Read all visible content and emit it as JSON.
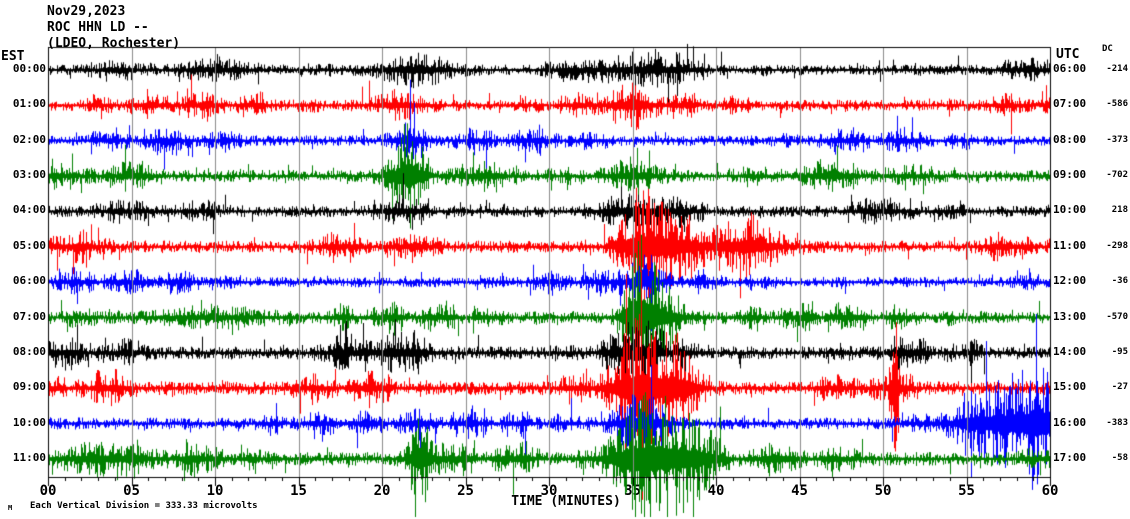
{
  "header": {
    "date": "Nov29,2023",
    "station_line": "ROC HHN LD --",
    "network_line": "(LDEO, Rochester)"
  },
  "left_axis": {
    "label": "EST"
  },
  "right_axis": {
    "label": "UTC"
  },
  "dc_column": {
    "label": "DC"
  },
  "x_axis": {
    "title": "TIME (MINUTES)",
    "labels": [
      "00",
      "05",
      "10",
      "15",
      "20",
      "25",
      "30",
      "35",
      "40",
      "45",
      "50",
      "55",
      "60"
    ]
  },
  "footer": {
    "watermark": "M",
    "scale_note": "Each Vertical Division = 333.33 microvolts"
  },
  "chart_data": {
    "type": "line",
    "subtype": "helicorder-seismogram",
    "title": "ROC HHN LD -- (LDEO, Rochester) Nov29,2023",
    "xlabel": "TIME (MINUTES)",
    "x_range_minutes": [
      0,
      60
    ],
    "minutes_per_row": 60,
    "grid": {
      "vertical_every_minutes": 5,
      "color": "#8a8a8a"
    },
    "axis_color": "#000000",
    "background": "#ffffff",
    "trace_color_cycle": [
      "#000000",
      "#ff0000",
      "#0000ff",
      "#008000"
    ],
    "scale_microvolts_per_division": "333.33",
    "rows": [
      {
        "est": "00:00",
        "utc": "06:00",
        "dc": "-214",
        "color": "#000000",
        "seed": 11,
        "base_amp": 13,
        "bursts": [
          {
            "min": 22,
            "width": 2.0,
            "amp": 10
          },
          {
            "min": 35,
            "width": 2.0,
            "amp": 8
          }
        ]
      },
      {
        "est": "01:00",
        "utc": "07:00",
        "dc": "-586",
        "color": "#ff0000",
        "seed": 22,
        "base_amp": 14,
        "bursts": [
          {
            "min": 21,
            "width": 1.5,
            "amp": 8
          },
          {
            "min": 35,
            "width": 1.5,
            "amp": 8
          }
        ]
      },
      {
        "est": "02:00",
        "utc": "08:00",
        "dc": "-373",
        "color": "#0000ff",
        "seed": 33,
        "base_amp": 13,
        "bursts": [
          {
            "min": 21.5,
            "width": 1.0,
            "amp": 12
          }
        ]
      },
      {
        "est": "03:00",
        "utc": "09:00",
        "dc": "-702",
        "color": "#008000",
        "seed": 44,
        "base_amp": 15,
        "bursts": [
          {
            "min": 21.6,
            "width": 0.9,
            "amp": 32
          },
          {
            "min": 35,
            "width": 1.5,
            "amp": 10
          }
        ]
      },
      {
        "est": "04:00",
        "utc": "10:00",
        "dc": "218",
        "color": "#000000",
        "seed": 55,
        "base_amp": 14,
        "bursts": [
          {
            "min": 35,
            "width": 1.5,
            "amp": 10
          }
        ]
      },
      {
        "est": "05:00",
        "utc": "11:00",
        "dc": "-298",
        "color": "#ff0000",
        "seed": 66,
        "base_amp": 15,
        "bursts": [
          {
            "min": 35.4,
            "width": 1.2,
            "amp": 38
          },
          {
            "min": 37.5,
            "width": 1.5,
            "amp": 20
          },
          {
            "min": 41.5,
            "width": 2.5,
            "amp": 14
          }
        ]
      },
      {
        "est": "06:00",
        "utc": "12:00",
        "dc": "-36",
        "color": "#0000ff",
        "seed": 77,
        "base_amp": 13,
        "bursts": [
          {
            "min": 35.4,
            "width": 1.0,
            "amp": 14
          }
        ]
      },
      {
        "est": "07:00",
        "utc": "13:00",
        "dc": "-570",
        "color": "#008000",
        "seed": 88,
        "base_amp": 15,
        "bursts": [
          {
            "min": 35.3,
            "width": 0.8,
            "amp": 60
          },
          {
            "min": 36.5,
            "width": 1.5,
            "amp": 25
          },
          {
            "min": 10,
            "width": 3.0,
            "amp": 6
          }
        ]
      },
      {
        "est": "08:00",
        "utc": "14:00",
        "dc": "-95",
        "color": "#000000",
        "seed": 99,
        "base_amp": 16,
        "bursts": [
          {
            "min": 21,
            "width": 2.0,
            "amp": 8
          },
          {
            "min": 35.5,
            "width": 1.5,
            "amp": 18
          }
        ]
      },
      {
        "est": "09:00",
        "utc": "15:00",
        "dc": "-27",
        "color": "#ff0000",
        "seed": 110,
        "base_amp": 17,
        "bursts": [
          {
            "min": 35.6,
            "width": 1.8,
            "amp": 40
          },
          {
            "min": 37.8,
            "width": 1.2,
            "amp": 25
          },
          {
            "min": 50.7,
            "width": 0.25,
            "amp": 45
          }
        ]
      },
      {
        "est": "10:00",
        "utc": "16:00",
        "dc": "-383",
        "color": "#0000ff",
        "seed": 121,
        "base_amp": 15,
        "bursts": [
          {
            "min": 35.5,
            "width": 1.5,
            "amp": 20
          },
          {
            "min": 57,
            "width": 2.5,
            "amp": 28
          },
          {
            "min": 59.5,
            "width": 1.0,
            "amp": 35
          }
        ]
      },
      {
        "est": "11:00",
        "utc": "17:00",
        "dc": "-58",
        "color": "#008000",
        "seed": 132,
        "base_amp": 17,
        "bursts": [
          {
            "min": 22.3,
            "width": 0.7,
            "amp": 35
          },
          {
            "min": 35.8,
            "width": 2.0,
            "amp": 45
          },
          {
            "min": 38.5,
            "width": 1.5,
            "amp": 25
          },
          {
            "min": 3,
            "width": 2.0,
            "amp": 10
          }
        ]
      }
    ]
  }
}
